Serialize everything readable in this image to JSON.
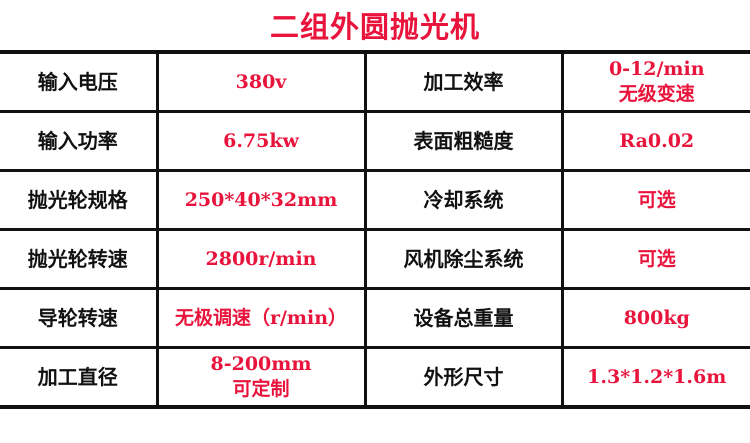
{
  "title": "二组外圆抛光机",
  "accent_color": "#e8143c",
  "rows": [
    {
      "k1": "输入电压",
      "v1": [
        "380v"
      ],
      "k2": "加工效率",
      "v2": [
        "0-12/min",
        "无级变速"
      ]
    },
    {
      "k1": "输入功率",
      "v1": [
        "6.75kw"
      ],
      "k2": "表面粗糙度",
      "v2": [
        "Ra0.02"
      ]
    },
    {
      "k1": "抛光轮规格",
      "v1": [
        "250*40*32mm"
      ],
      "k2": "冷却系统",
      "v2": [
        "可选"
      ]
    },
    {
      "k1": "抛光轮转速",
      "v1": [
        "2800r/min"
      ],
      "k2": "风机除尘系统",
      "v2": [
        "可选"
      ]
    },
    {
      "k1": "导轮转速",
      "v1": [
        "无极调速（r/min）"
      ],
      "k2": "设备总重量",
      "v2": [
        "800kg"
      ]
    },
    {
      "k1": "加工直径",
      "v1": [
        "8-200mm",
        "可定制"
      ],
      "k2": "外形尺寸",
      "v2": [
        "1.3*1.2*1.6m"
      ]
    }
  ]
}
